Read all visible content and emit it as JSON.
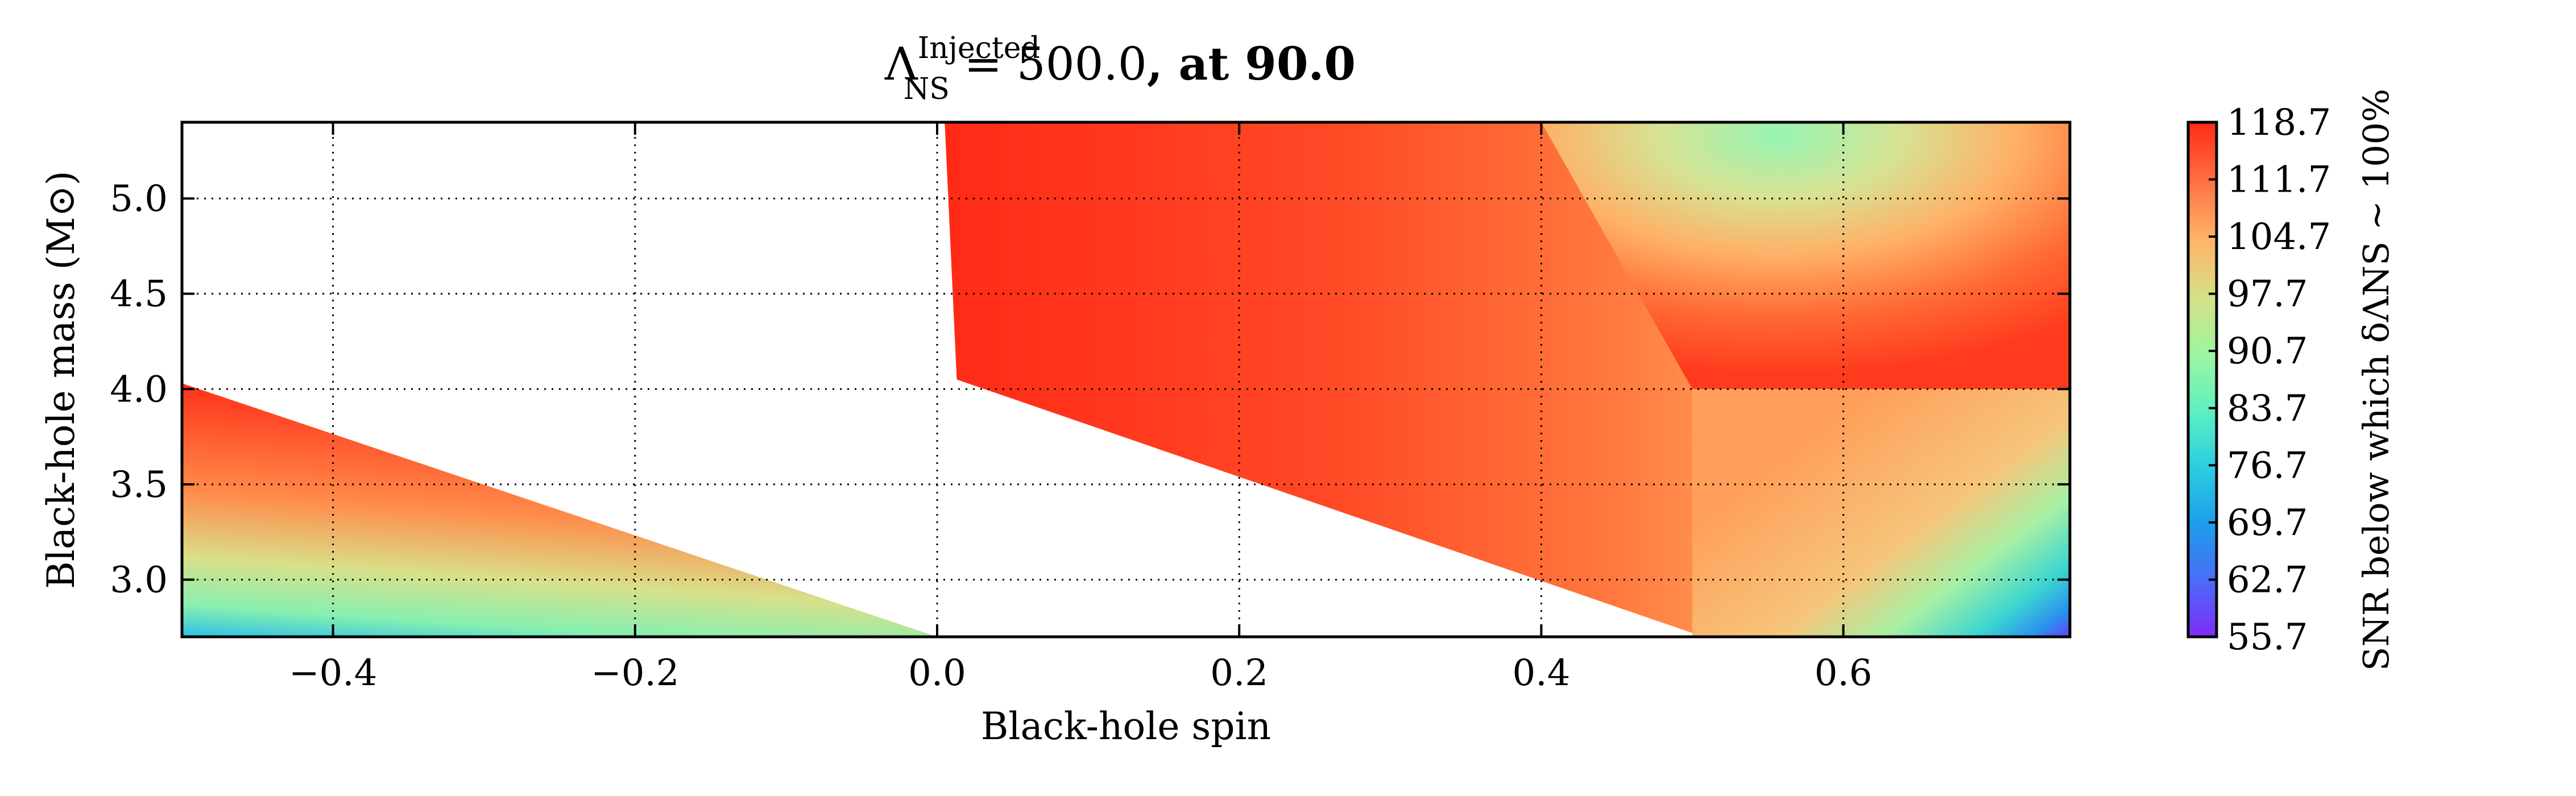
{
  "chart_data": {
    "type": "contour",
    "title": {
      "symbol": "Λ",
      "superscript": "Injected",
      "subscript": "NS",
      "rest": " = 500.0",
      "bold": ", at 90.0"
    },
    "xlabel": "Black-hole spin",
    "ylabel": "Black-hole mass (M⊙)",
    "colorbar_label": "SNR below which δΛNS ~ 100%",
    "xlim": [
      -0.5,
      0.75
    ],
    "ylim": [
      2.7,
      5.4
    ],
    "x_ticks": [
      -0.4,
      -0.2,
      0.0,
      0.2,
      0.4,
      0.6
    ],
    "x_tick_labels": [
      "−0.4",
      "−0.2",
      "0.0",
      "0.2",
      "0.4",
      "0.6"
    ],
    "y_ticks": [
      3.0,
      3.5,
      4.0,
      4.5,
      5.0
    ],
    "y_tick_labels": [
      "3.0",
      "3.5",
      "4.0",
      "4.5",
      "5.0"
    ],
    "grid": true,
    "colormap": "rainbow",
    "colorbar_ticks": [
      "55.7",
      "62.7",
      "69.7",
      "76.7",
      "83.7",
      "90.7",
      "97.7",
      "104.7",
      "111.7",
      "118.7"
    ],
    "colorbar_range": [
      55.7,
      118.7
    ],
    "regions": [
      {
        "name": "left-wedge",
        "polygon": [
          [
            -0.5,
            4.03
          ],
          [
            -0.5,
            2.7
          ],
          [
            0.0,
            2.7
          ]
        ],
        "values": [
          118.7,
          80.0,
          118.7
        ]
      },
      {
        "name": "central-band",
        "polygon": [
          [
            0.005,
            5.4
          ],
          [
            0.75,
            5.4
          ],
          [
            0.75,
            4.0
          ],
          [
            0.5,
            4.0
          ],
          [
            0.5,
            2.72
          ],
          [
            0.013,
            4.05
          ]
        ],
        "values": [
          118.7,
          118.7,
          104.7,
          104.7,
          118.7,
          118.7
        ]
      },
      {
        "name": "upper-right-fan",
        "polygon": [
          [
            0.4,
            5.4
          ],
          [
            0.75,
            5.4
          ],
          [
            0.75,
            4.0
          ],
          [
            0.5,
            4.0
          ]
        ],
        "values": [
          88.0,
          118.7,
          118.7,
          104.7
        ]
      },
      {
        "name": "lower-right-block",
        "polygon": [
          [
            0.5,
            4.0
          ],
          [
            0.75,
            4.0
          ],
          [
            0.75,
            2.7
          ],
          [
            0.5,
            2.7
          ]
        ],
        "values": [
          104.7,
          104.7,
          57.0,
          104.7
        ]
      }
    ]
  }
}
